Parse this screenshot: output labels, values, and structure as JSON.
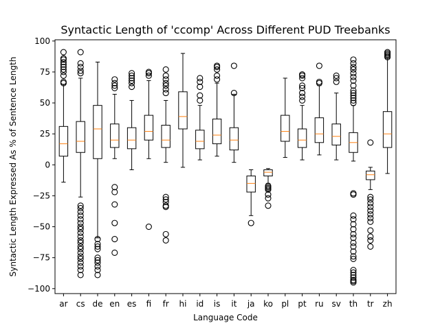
{
  "chart_data": {
    "type": "box",
    "title": "Syntactic Length of 'ccomp' Across Different PUD Treebanks",
    "xlabel": "Language Code",
    "ylabel": "Syntactic Length Expressed As % of Sentence Length",
    "ylim": [
      -104,
      101
    ],
    "yticks": [
      -100,
      -75,
      -50,
      -25,
      0,
      25,
      50,
      75,
      100
    ],
    "grid": false,
    "colors": {
      "box": "#000000",
      "median": "#ff7f0e",
      "flier": "#000000"
    },
    "categories": [
      "ar",
      "cs",
      "de",
      "en",
      "es",
      "fi",
      "fr",
      "hi",
      "id",
      "is",
      "it",
      "ja",
      "ko",
      "pl",
      "pt",
      "ru",
      "sv",
      "th",
      "tr",
      "zh"
    ],
    "boxes": [
      {
        "label": "ar",
        "whislo": -14,
        "q1": 7,
        "median": 17,
        "q3": 31,
        "whishi": 65,
        "fliers": [
          66,
          67,
          72,
          75,
          77,
          79,
          81,
          83,
          85,
          86,
          91
        ]
      },
      {
        "label": "cs",
        "whislo": -26,
        "q1": 10,
        "median": 19,
        "q3": 35,
        "whishi": 70,
        "fliers": [
          -33,
          -35,
          -38,
          -41,
          -44,
          -47,
          -50,
          -52,
          -55,
          -58,
          -61,
          -63,
          -66,
          -68,
          -71,
          -74,
          -76,
          -79,
          -82,
          -85,
          -89,
          74,
          76,
          79,
          82,
          91
        ]
      },
      {
        "label": "de",
        "whislo": -59,
        "q1": 5,
        "median": 29,
        "q3": 48,
        "whishi": 83,
        "fliers": [
          -60,
          -64,
          -66,
          -68,
          -75,
          -77,
          -79,
          -82,
          -85,
          -89
        ]
      },
      {
        "label": "en",
        "whislo": 5,
        "q1": 14,
        "median": 20,
        "q3": 33,
        "whishi": 57,
        "fliers": [
          -18,
          -22,
          -32,
          -47,
          -60,
          -71,
          62,
          64,
          66,
          69
        ]
      },
      {
        "label": "es",
        "whislo": -4,
        "q1": 13,
        "median": 20,
        "q3": 30,
        "whishi": 52,
        "fliers": [
          63,
          66,
          68,
          70,
          72,
          74
        ]
      },
      {
        "label": "fi",
        "whislo": 5,
        "q1": 20,
        "median": 27,
        "q3": 40,
        "whishi": 68,
        "fliers": [
          -50,
          72,
          74,
          75
        ]
      },
      {
        "label": "fr",
        "whislo": 2,
        "q1": 14,
        "median": 20,
        "q3": 32,
        "whishi": 52,
        "fliers": [
          -26,
          -28,
          -30,
          -33,
          -34,
          -56,
          -61,
          58,
          61,
          64,
          66,
          69,
          72,
          77
        ]
      },
      {
        "label": "hi",
        "whislo": -2,
        "q1": 29,
        "median": 39,
        "q3": 59,
        "whishi": 90,
        "fliers": []
      },
      {
        "label": "id",
        "whislo": 4,
        "q1": 13,
        "median": 19,
        "q3": 28,
        "whishi": 48,
        "fliers": [
          52,
          56,
          63,
          67,
          70
        ]
      },
      {
        "label": "is",
        "whislo": 7,
        "q1": 17,
        "median": 24,
        "q3": 37,
        "whishi": 66,
        "fliers": [
          69,
          72,
          77,
          79,
          80
        ]
      },
      {
        "label": "it",
        "whislo": 2,
        "q1": 12,
        "median": 20,
        "q3": 30,
        "whishi": 57,
        "fliers": [
          58,
          80
        ]
      },
      {
        "label": "ja",
        "whislo": -41,
        "q1": -22,
        "median": -15,
        "q3": -9,
        "whishi": -4,
        "fliers": [
          -47
        ]
      },
      {
        "label": "ko",
        "whislo": -15,
        "q1": -9,
        "median": -6,
        "q3": -4,
        "whishi": -3,
        "fliers": [
          -17,
          -18,
          -19,
          -20,
          -24,
          -27,
          -33
        ]
      },
      {
        "label": "pl",
        "whislo": 6,
        "q1": 19,
        "median": 27,
        "q3": 40,
        "whishi": 70,
        "fliers": []
      },
      {
        "label": "pt",
        "whislo": 4,
        "q1": 14,
        "median": 20,
        "q3": 29,
        "whishi": 48,
        "fliers": [
          52,
          55,
          58,
          62,
          64,
          70,
          72,
          73
        ]
      },
      {
        "label": "ru",
        "whislo": 8,
        "q1": 18,
        "median": 25,
        "q3": 38,
        "whishi": 64,
        "fliers": [
          66,
          67,
          80
        ]
      },
      {
        "label": "sv",
        "whislo": 4,
        "q1": 16,
        "median": 23,
        "q3": 33,
        "whishi": 58,
        "fliers": [
          67,
          70,
          72
        ]
      },
      {
        "label": "th",
        "whislo": 3,
        "q1": 10,
        "median": 18,
        "q3": 26,
        "whishi": 48,
        "fliers": [
          -23,
          -24,
          -41,
          -44,
          -48,
          -52,
          -56,
          -59,
          -63,
          -66,
          -70,
          -74,
          -76,
          -85,
          -87,
          -89,
          -91,
          -93,
          -94,
          -95,
          50,
          52,
          54,
          56,
          58,
          60,
          64,
          68,
          71,
          74,
          77,
          79,
          82,
          85
        ]
      },
      {
        "label": "tr",
        "whislo": -20,
        "q1": -12,
        "median": -8,
        "q3": -5,
        "whishi": -2,
        "fliers": [
          18,
          -26,
          -28,
          -31,
          -34,
          -37,
          -40,
          -43,
          -46,
          -53,
          -58,
          -61,
          -66
        ]
      },
      {
        "label": "zh",
        "whislo": -7,
        "q1": 14,
        "median": 25,
        "q3": 43,
        "whishi": 86,
        "fliers": [
          87,
          88,
          89,
          90,
          91
        ]
      }
    ]
  }
}
